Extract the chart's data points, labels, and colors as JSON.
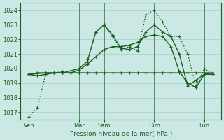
{
  "background_color": "#cce8e4",
  "grid_color": "#a8d4ce",
  "line_color": "#1a5e20",
  "xlabel": "Pression niveau de la mer( hPa )",
  "ylim": [
    1016.5,
    1024.5
  ],
  "yticks": [
    1017,
    1018,
    1019,
    1020,
    1021,
    1022,
    1023,
    1024
  ],
  "xlim": [
    0,
    48
  ],
  "x_day_labels": [
    "Ven",
    "Mar",
    "Sam",
    "Dim",
    "Lun"
  ],
  "x_day_positions": [
    2,
    14,
    20,
    32,
    44
  ],
  "x_vlines": [
    2,
    14,
    20,
    32,
    44
  ],
  "series": [
    {
      "x": [
        2,
        4,
        6,
        8,
        10,
        12,
        14,
        16,
        18,
        20,
        22,
        24,
        26,
        28,
        30,
        32,
        34,
        36,
        38,
        40,
        42,
        44,
        46
      ],
      "y": [
        1016.7,
        1017.3,
        1019.6,
        1019.7,
        1019.8,
        1019.7,
        1019.7,
        1020.6,
        1022.5,
        1023.0,
        1022.2,
        1021.3,
        1021.5,
        1021.2,
        1023.7,
        1024.0,
        1023.2,
        1022.2,
        1022.2,
        1021.0,
        1018.8,
        1020.0,
        1019.6
      ],
      "style": "dotted",
      "lw": 1.0
    },
    {
      "x": [
        2,
        4,
        6,
        8,
        10,
        12,
        14,
        16,
        18,
        20,
        22,
        24,
        26,
        28,
        30,
        32,
        34,
        36,
        38,
        40,
        42,
        44,
        46
      ],
      "y": [
        1019.6,
        1019.7,
        1019.7,
        1019.7,
        1019.7,
        1019.7,
        1019.7,
        1019.7,
        1019.7,
        1019.7,
        1019.7,
        1019.7,
        1019.7,
        1019.7,
        1019.7,
        1019.7,
        1019.7,
        1019.7,
        1019.7,
        1019.7,
        1019.7,
        1019.7,
        1019.7
      ],
      "style": "solid",
      "lw": 1.2
    },
    {
      "x": [
        2,
        4,
        6,
        8,
        10,
        12,
        14,
        16,
        18,
        20,
        22,
        24,
        26,
        28,
        30,
        32,
        34,
        36,
        38,
        40,
        42,
        44,
        46
      ],
      "y": [
        1019.6,
        1019.5,
        1019.6,
        1019.7,
        1019.7,
        1019.7,
        1019.9,
        1020.3,
        1020.8,
        1021.3,
        1021.5,
        1021.5,
        1021.6,
        1021.8,
        1022.2,
        1022.3,
        1022.2,
        1021.5,
        1019.8,
        1019.0,
        1018.7,
        1019.6,
        1019.6
      ],
      "style": "solid",
      "lw": 1.0
    },
    {
      "x": [
        2,
        6,
        10,
        14,
        16,
        18,
        20,
        22,
        24,
        26,
        28,
        30,
        32,
        34,
        36,
        38,
        40,
        42,
        44,
        46
      ],
      "y": [
        1019.6,
        1019.7,
        1019.7,
        1020.0,
        1020.5,
        1022.5,
        1023.0,
        1022.3,
        1021.4,
        1021.3,
        1021.5,
        1022.5,
        1023.0,
        1022.5,
        1022.2,
        1021.0,
        1018.8,
        1019.2,
        1019.6,
        1019.7
      ],
      "style": "solid",
      "lw": 1.0
    }
  ]
}
